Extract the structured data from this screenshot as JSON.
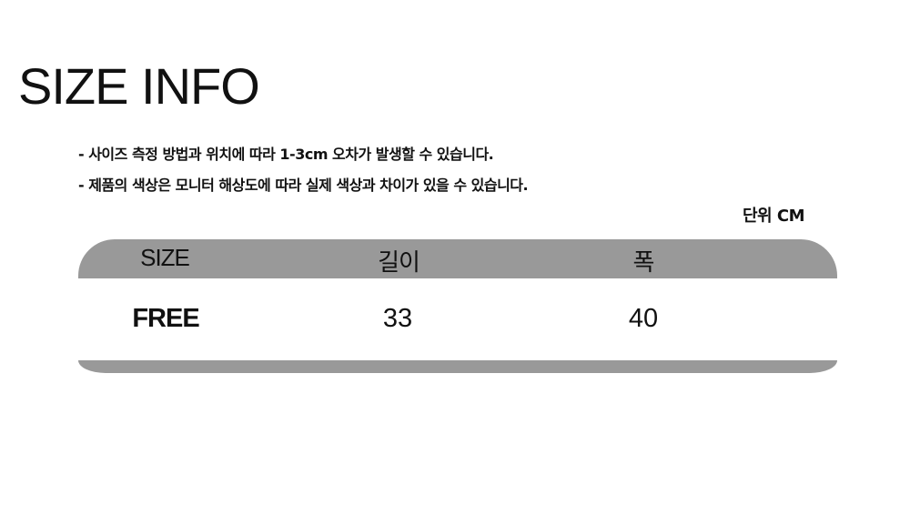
{
  "title": "SIZE INFO",
  "notes": [
    "-  사이즈 측정 방법과 위치에 따라 1-3cm 오차가 발생할 수 있습니다.",
    "-  제품의 색상은 모니터 해상도에 따라 실제 색상과 차이가 있을 수 있습니다."
  ],
  "unit": "단위 CM",
  "table": {
    "headers": [
      "SIZE",
      "길이",
      "폭"
    ],
    "rows": [
      [
        "FREE",
        "33",
        "40"
      ]
    ],
    "header_color": "#999999"
  }
}
